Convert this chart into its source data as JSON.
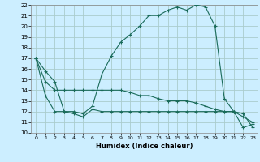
{
  "xlabel": "Humidex (Indice chaleur)",
  "bg_color": "#cceeff",
  "grid_color": "#aacccc",
  "line_color": "#1a6b5a",
  "xlim": [
    -0.5,
    23.5
  ],
  "ylim": [
    10,
    22
  ],
  "yticks": [
    10,
    11,
    12,
    13,
    14,
    15,
    16,
    17,
    18,
    19,
    20,
    21,
    22
  ],
  "xticks": [
    0,
    1,
    2,
    3,
    4,
    5,
    6,
    7,
    8,
    9,
    10,
    11,
    12,
    13,
    14,
    15,
    16,
    17,
    18,
    19,
    20,
    21,
    22,
    23
  ],
  "series1": [
    17.0,
    15.8,
    14.8,
    12.0,
    12.0,
    11.8,
    12.5,
    15.5,
    17.2,
    18.5,
    19.2,
    20.0,
    21.0,
    21.0,
    21.5,
    21.8,
    21.5,
    22.0,
    21.8,
    20.0,
    13.2,
    12.0,
    11.8,
    10.5
  ],
  "series2": [
    17.0,
    14.8,
    14.0,
    14.0,
    14.0,
    14.0,
    14.0,
    14.0,
    14.0,
    14.0,
    13.8,
    13.5,
    13.5,
    13.2,
    13.0,
    13.0,
    13.0,
    12.8,
    12.5,
    12.2,
    12.0,
    12.0,
    11.5,
    11.0
  ],
  "series3": [
    17.0,
    13.5,
    12.0,
    12.0,
    11.8,
    11.5,
    12.2,
    12.0,
    12.0,
    12.0,
    12.0,
    12.0,
    12.0,
    12.0,
    12.0,
    12.0,
    12.0,
    12.0,
    12.0,
    12.0,
    12.0,
    12.0,
    10.5,
    10.8
  ]
}
